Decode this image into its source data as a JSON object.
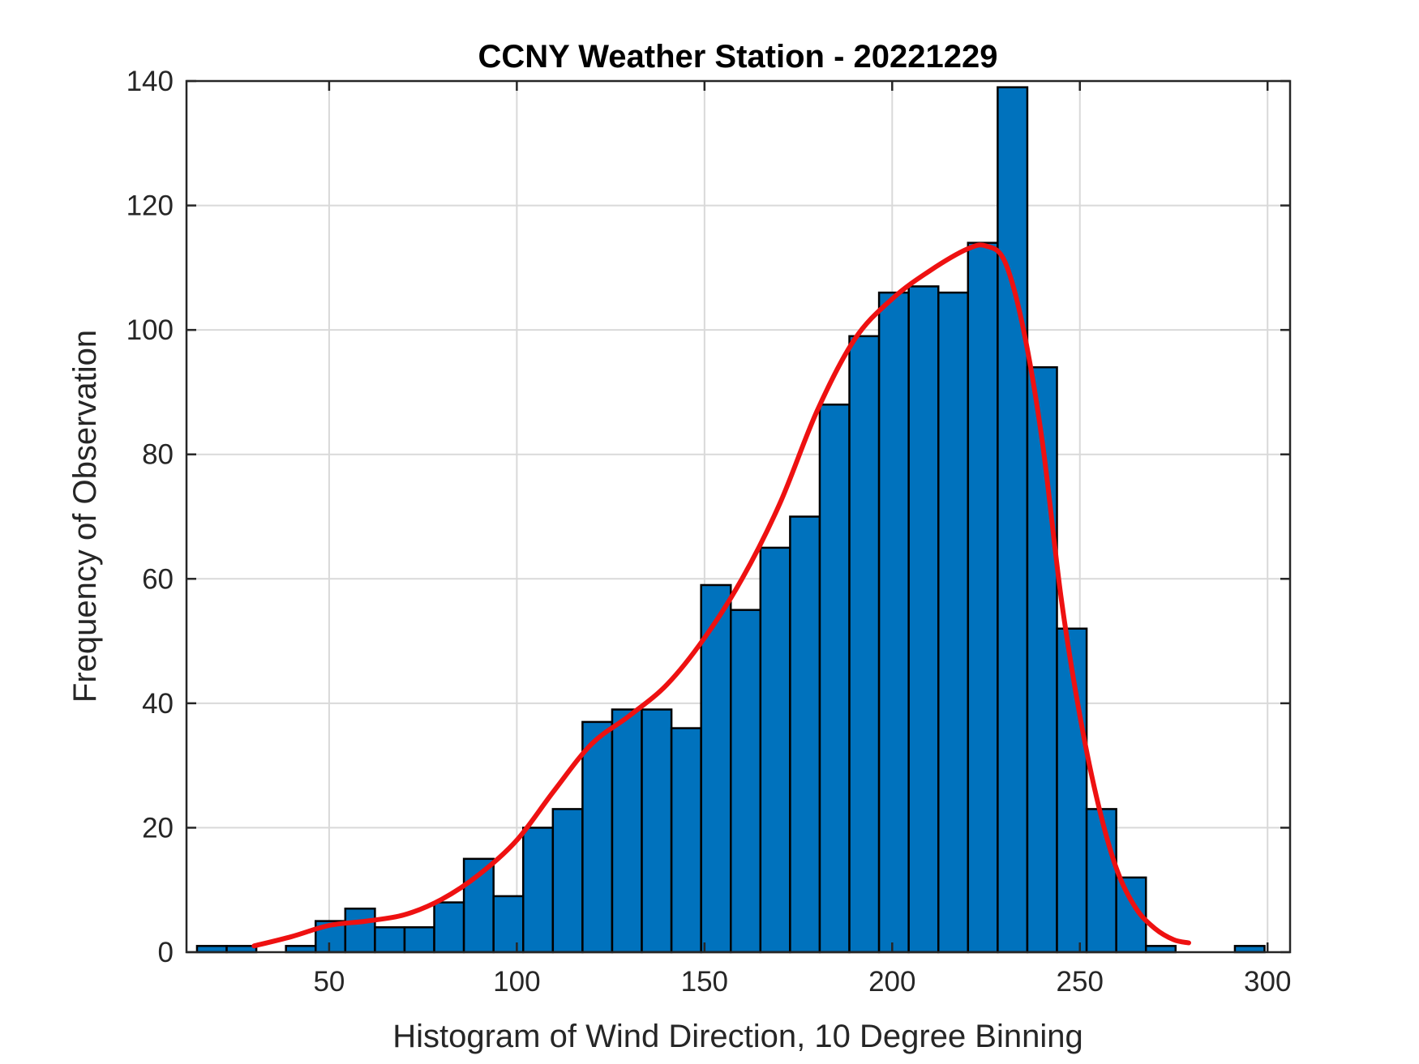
{
  "chart_data": {
    "type": "bar",
    "title": "CCNY Weather Station - 20221229",
    "xlabel": "Histogram of Wind Direction, 10 Degree Binning",
    "ylabel": "Frequency of Observation",
    "xlim": [
      12,
      306
    ],
    "ylim": [
      0,
      140
    ],
    "xticks": [
      50,
      100,
      150,
      200,
      250,
      300
    ],
    "yticks": [
      0,
      20,
      40,
      60,
      80,
      100,
      120,
      140
    ],
    "grid": true,
    "bin_width": 7.9,
    "bin_edges": [
      14.8,
      22.7,
      30.6,
      38.5,
      46.4,
      54.3,
      62.2,
      70.1,
      78.0,
      85.9,
      93.8,
      101.7,
      109.6,
      117.5,
      125.4,
      133.3,
      141.2,
      149.1,
      157.0,
      164.9,
      172.8,
      180.7,
      188.6,
      196.5,
      204.4,
      212.3,
      220.2,
      228.1,
      236.0,
      243.9,
      251.8,
      259.7,
      267.6,
      275.5,
      283.4,
      291.3,
      299.2
    ],
    "values": [
      1,
      1,
      0,
      1,
      5,
      7,
      4,
      4,
      8,
      15,
      9,
      20,
      23,
      37,
      39,
      39,
      36,
      59,
      55,
      65,
      70,
      88,
      99,
      106,
      107,
      106,
      114,
      139,
      94,
      52,
      23,
      12,
      1,
      0,
      0,
      1
    ],
    "fit_curve": {
      "x": [
        30,
        40,
        50,
        60,
        70,
        80,
        90,
        100,
        110,
        120,
        130,
        140,
        150,
        160,
        170,
        180,
        190,
        200,
        210,
        220,
        225,
        230,
        235,
        240,
        245,
        250,
        255,
        260,
        265,
        270,
        275,
        279
      ],
      "y": [
        1,
        2.5,
        4.3,
        5,
        6,
        8.5,
        12.5,
        18,
        26,
        33.5,
        38,
        43,
        50.5,
        60,
        72,
        87,
        98.5,
        105,
        109.5,
        113,
        113.5,
        111,
        100,
        82,
        57,
        38,
        23.5,
        13,
        7,
        3.8,
        2,
        1.5
      ]
    },
    "bar_color": "#0072BD",
    "bar_edge_color": "#000000",
    "curve_color": "#EE1111"
  }
}
